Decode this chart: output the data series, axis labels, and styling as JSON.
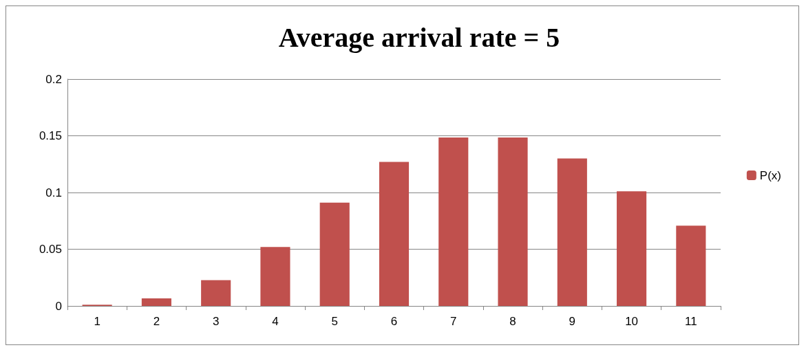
{
  "chart_data": {
    "type": "bar",
    "title": "Average arrival rate = 5",
    "categories": [
      "1",
      "2",
      "3",
      "4",
      "5",
      "6",
      "7",
      "8",
      "9",
      "10",
      "11"
    ],
    "series": [
      {
        "name": "P(x)",
        "color": "#c0504d",
        "values": [
          0.001,
          0.0066,
          0.0228,
          0.052,
          0.091,
          0.127,
          0.1485,
          0.1485,
          0.13,
          0.101,
          0.0707
        ]
      }
    ],
    "ylim": [
      0,
      0.2
    ],
    "yticks": [
      0,
      0.05,
      0.1,
      0.15,
      0.2
    ],
    "grid": "y",
    "legend": "right"
  }
}
